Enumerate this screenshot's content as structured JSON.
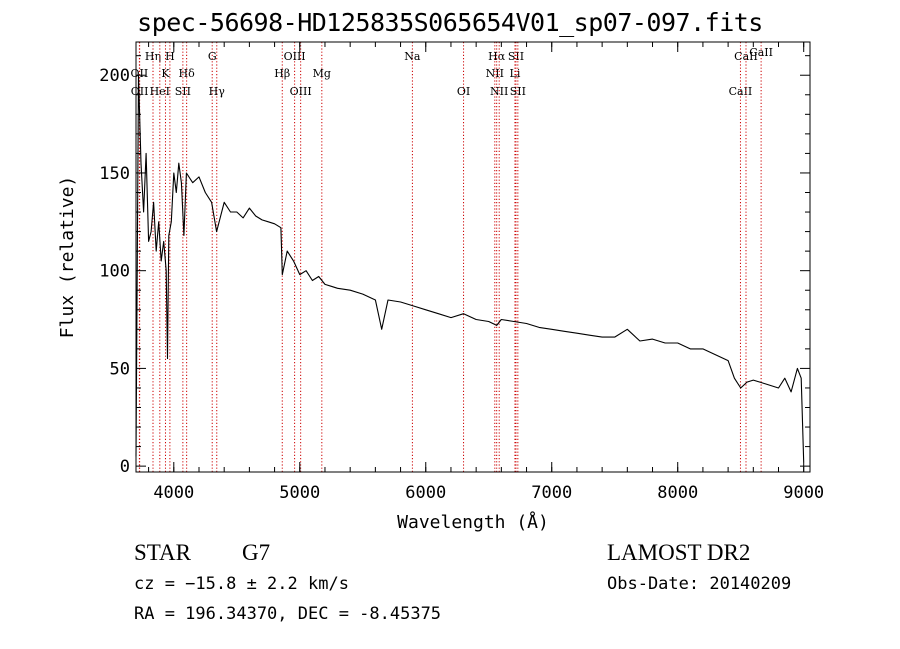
{
  "chart_data": {
    "type": "line",
    "title": "spec-56698-HD125835S065654V01_sp07-097.fits",
    "xlabel": "Wavelength (Å)",
    "ylabel": "Flux (relative)",
    "xlim": [
      3700,
      9050
    ],
    "ylim": [
      -3,
      217
    ],
    "xticks": [
      4000,
      5000,
      6000,
      7000,
      8000,
      9000
    ],
    "yticks": [
      0,
      50,
      100,
      150,
      200
    ],
    "line_color": "#000000",
    "marker_color": "#cc0000",
    "series": [
      {
        "x": [
          3700,
          3720,
          3740,
          3760,
          3780,
          3800,
          3820,
          3840,
          3860,
          3880,
          3900,
          3920,
          3940,
          3950,
          3960,
          3980,
          4000,
          4020,
          4040,
          4060,
          4080,
          4100,
          4150,
          4200,
          4250,
          4300,
          4340,
          4400,
          4450,
          4500,
          4550,
          4600,
          4650,
          4700,
          4750,
          4800,
          4850,
          4861,
          4900,
          4950,
          5000,
          5050,
          5100,
          5150,
          5200,
          5250,
          5300,
          5400,
          5500,
          5600,
          5650,
          5700,
          5800,
          5900,
          6000,
          6100,
          6200,
          6300,
          6400,
          6500,
          6563,
          6600,
          6700,
          6800,
          6900,
          7000,
          7100,
          7200,
          7300,
          7400,
          7500,
          7600,
          7700,
          7800,
          7900,
          8000,
          8100,
          8200,
          8300,
          8400,
          8450,
          8500,
          8550,
          8600,
          8700,
          8800,
          8850,
          8900,
          8950,
          8980,
          9000
        ],
        "values": [
          5,
          200,
          155,
          130,
          160,
          115,
          120,
          135,
          110,
          125,
          105,
          115,
          100,
          55,
          118,
          125,
          150,
          140,
          155,
          145,
          118,
          150,
          145,
          148,
          140,
          135,
          120,
          135,
          130,
          130,
          127,
          132,
          128,
          126,
          125,
          124,
          122,
          98,
          110,
          105,
          98,
          100,
          95,
          97,
          93,
          92,
          91,
          90,
          88,
          85,
          70,
          85,
          84,
          82,
          80,
          78,
          76,
          78,
          75,
          74,
          72,
          75,
          74,
          73,
          71,
          70,
          69,
          68,
          67,
          66,
          66,
          70,
          64,
          65,
          63,
          63,
          60,
          60,
          57,
          54,
          45,
          40,
          43,
          44,
          42,
          40,
          45,
          38,
          50,
          45,
          2
        ]
      }
    ],
    "lines": [
      {
        "label": "OII",
        "x": 3727,
        "row": 2
      },
      {
        "label": "OII",
        "x": 3729,
        "row": 3
      },
      {
        "label": "Hη",
        "x": 3835,
        "row": 1
      },
      {
        "label": "HeI",
        "x": 3889,
        "row": 3
      },
      {
        "label": "K",
        "x": 3934,
        "row": 2
      },
      {
        "label": "H",
        "x": 3969,
        "row": 1
      },
      {
        "label": "SII",
        "x": 4072,
        "row": 3
      },
      {
        "label": "Hδ",
        "x": 4102,
        "row": 2
      },
      {
        "label": "G",
        "x": 4305,
        "row": 1
      },
      {
        "label": "Hγ",
        "x": 4341,
        "row": 3
      },
      {
        "label": "Hβ",
        "x": 4861,
        "row": 2
      },
      {
        "label": "OIII",
        "x": 4959,
        "row": 1
      },
      {
        "label": "OIII",
        "x": 5007,
        "row": 3
      },
      {
        "label": "Mg",
        "x": 5175,
        "row": 2
      },
      {
        "label": "Na",
        "x": 5894,
        "row": 1
      },
      {
        "label": "OI",
        "x": 6300,
        "row": 3
      },
      {
        "label": "NII",
        "x": 6548,
        "row": 2
      },
      {
        "label": "Hα",
        "x": 6563,
        "row": 1
      },
      {
        "label": "NII",
        "x": 6583,
        "row": 3
      },
      {
        "label": "Li",
        "x": 6708,
        "row": 2
      },
      {
        "label": "SII",
        "x": 6716,
        "row": 1
      },
      {
        "label": "SII",
        "x": 6731,
        "row": 3
      },
      {
        "label": "CaII",
        "x": 8498,
        "row": 3
      },
      {
        "label": "CaII",
        "x": 8542,
        "row": 1
      },
      {
        "label": "CaII",
        "x": 8662,
        "row": 0
      }
    ]
  },
  "info": {
    "class_label": "STAR",
    "subclass": "G7",
    "survey": "LAMOST DR2",
    "redshift_line": "cz = −15.8 ± 2.2 km/s",
    "obs_date": "Obs-Date: 20140209",
    "coords": "RA = 196.34370, DEC =  -8.45375"
  }
}
